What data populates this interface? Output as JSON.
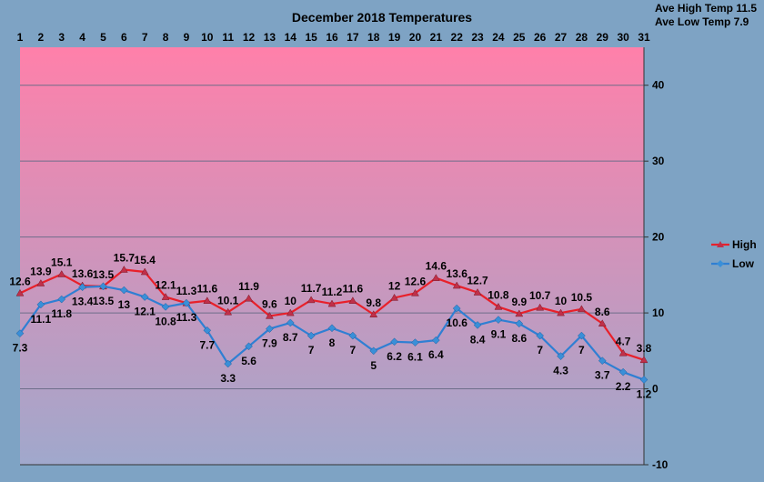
{
  "chart_data": {
    "type": "line",
    "title": "December 2018 Temperatures",
    "annotations": [
      "Ave High Temp 11.5",
      "Ave Low Temp 7.9"
    ],
    "x": [
      "1",
      "2",
      "3",
      "4",
      "5",
      "6",
      "7",
      "8",
      "9",
      "10",
      "11",
      "12",
      "13",
      "14",
      "15",
      "16",
      "17",
      "18",
      "19",
      "20",
      "21",
      "22",
      "23",
      "24",
      "25",
      "26",
      "27",
      "28",
      "29",
      "30",
      "31"
    ],
    "series": [
      {
        "name": "High",
        "color": "#e8202a",
        "values": [
          12.6,
          13.9,
          15.1,
          13.6,
          13.5,
          15.7,
          15.4,
          12.1,
          11.3,
          11.6,
          10.1,
          11.9,
          9.6,
          10,
          11.7,
          11.2,
          11.6,
          9.8,
          12,
          12.6,
          14.6,
          13.6,
          12.7,
          10.8,
          9.9,
          10.7,
          10,
          10.5,
          8.6,
          4.7,
          3.8
        ]
      },
      {
        "name": "Low",
        "color": "#2f7fd3",
        "values": [
          7.3,
          11.1,
          11.8,
          13.4,
          13.5,
          13,
          12.1,
          10.8,
          11.3,
          7.7,
          3.3,
          5.6,
          7.9,
          8.7,
          7,
          8,
          7,
          5,
          6.2,
          6.1,
          6.4,
          10.6,
          8.4,
          9.1,
          8.6,
          7,
          4.3,
          7,
          3.7,
          2.2,
          1.2
        ]
      }
    ],
    "yticks": [
      -10,
      0,
      10,
      20,
      30,
      40
    ],
    "ylim": [
      -10,
      45
    ],
    "x_axis_position": "top",
    "y_axis_position": "right",
    "grid": true,
    "legend": "right",
    "background_gradient": [
      "#ff80aa",
      "#a0a8cc"
    ]
  }
}
